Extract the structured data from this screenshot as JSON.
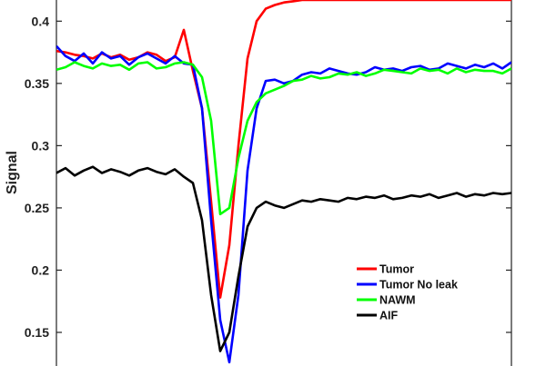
{
  "chart_data": {
    "type": "line",
    "title": "",
    "xlabel": "",
    "ylabel": "Signal",
    "ylim": [
      0.123,
      0.417
    ],
    "yticks": [
      "0.4",
      "0.35",
      "0.3",
      "0.25",
      "0.2",
      "0.15"
    ],
    "grid": false,
    "legend_placement": "bottom-right",
    "x": [
      0,
      2,
      4,
      6,
      8,
      10,
      12,
      14,
      16,
      18,
      20,
      22,
      24,
      26,
      28,
      30,
      32,
      34,
      36,
      38,
      40,
      42,
      44,
      46,
      48,
      50,
      52,
      54,
      56,
      58,
      60,
      62,
      64,
      66,
      68,
      70,
      72,
      74,
      76,
      78,
      80,
      82,
      84,
      86,
      88,
      90,
      92,
      94,
      96,
      98,
      100
    ],
    "series": [
      {
        "name": "Tumor",
        "color": "#ff0000",
        "values": [
          0.376,
          0.375,
          0.373,
          0.372,
          0.37,
          0.374,
          0.371,
          0.373,
          0.369,
          0.371,
          0.375,
          0.373,
          0.368,
          0.371,
          0.393,
          0.36,
          0.33,
          0.255,
          0.178,
          0.22,
          0.3,
          0.37,
          0.4,
          0.41,
          0.413,
          0.415,
          0.416,
          0.417,
          0.417,
          0.417,
          0.417,
          0.417,
          0.417,
          0.417,
          0.417,
          0.417,
          0.417,
          0.417,
          0.417,
          0.417,
          0.417,
          0.417,
          0.417,
          0.417,
          0.417,
          0.417,
          0.417,
          0.417,
          0.417,
          0.417,
          0.417
        ]
      },
      {
        "name": "Tumor No leak",
        "color": "#0000ff",
        "values": [
          0.38,
          0.372,
          0.368,
          0.374,
          0.366,
          0.375,
          0.37,
          0.372,
          0.365,
          0.371,
          0.374,
          0.37,
          0.366,
          0.372,
          0.366,
          0.365,
          0.33,
          0.24,
          0.16,
          0.126,
          0.18,
          0.28,
          0.33,
          0.352,
          0.353,
          0.35,
          0.352,
          0.357,
          0.359,
          0.358,
          0.362,
          0.36,
          0.358,
          0.357,
          0.359,
          0.363,
          0.361,
          0.362,
          0.36,
          0.363,
          0.364,
          0.361,
          0.362,
          0.366,
          0.364,
          0.362,
          0.365,
          0.363,
          0.366,
          0.362,
          0.367
        ]
      },
      {
        "name": "NAWM",
        "color": "#00ff00",
        "values": [
          0.361,
          0.363,
          0.367,
          0.364,
          0.362,
          0.366,
          0.364,
          0.365,
          0.361,
          0.366,
          0.367,
          0.362,
          0.363,
          0.366,
          0.367,
          0.365,
          0.355,
          0.32,
          0.245,
          0.25,
          0.29,
          0.32,
          0.335,
          0.342,
          0.345,
          0.348,
          0.352,
          0.353,
          0.356,
          0.354,
          0.355,
          0.358,
          0.357,
          0.359,
          0.356,
          0.358,
          0.361,
          0.36,
          0.359,
          0.358,
          0.362,
          0.36,
          0.361,
          0.358,
          0.362,
          0.359,
          0.361,
          0.36,
          0.36,
          0.358,
          0.362
        ]
      },
      {
        "name": "AIF",
        "color": "#000000",
        "values": [
          0.278,
          0.282,
          0.276,
          0.28,
          0.283,
          0.278,
          0.281,
          0.279,
          0.276,
          0.28,
          0.282,
          0.279,
          0.277,
          0.281,
          0.275,
          0.27,
          0.24,
          0.18,
          0.135,
          0.15,
          0.195,
          0.235,
          0.25,
          0.255,
          0.252,
          0.25,
          0.253,
          0.256,
          0.255,
          0.257,
          0.256,
          0.255,
          0.258,
          0.257,
          0.259,
          0.258,
          0.26,
          0.257,
          0.258,
          0.26,
          0.259,
          0.261,
          0.258,
          0.26,
          0.262,
          0.259,
          0.261,
          0.26,
          0.262,
          0.261,
          0.262
        ]
      }
    ]
  }
}
